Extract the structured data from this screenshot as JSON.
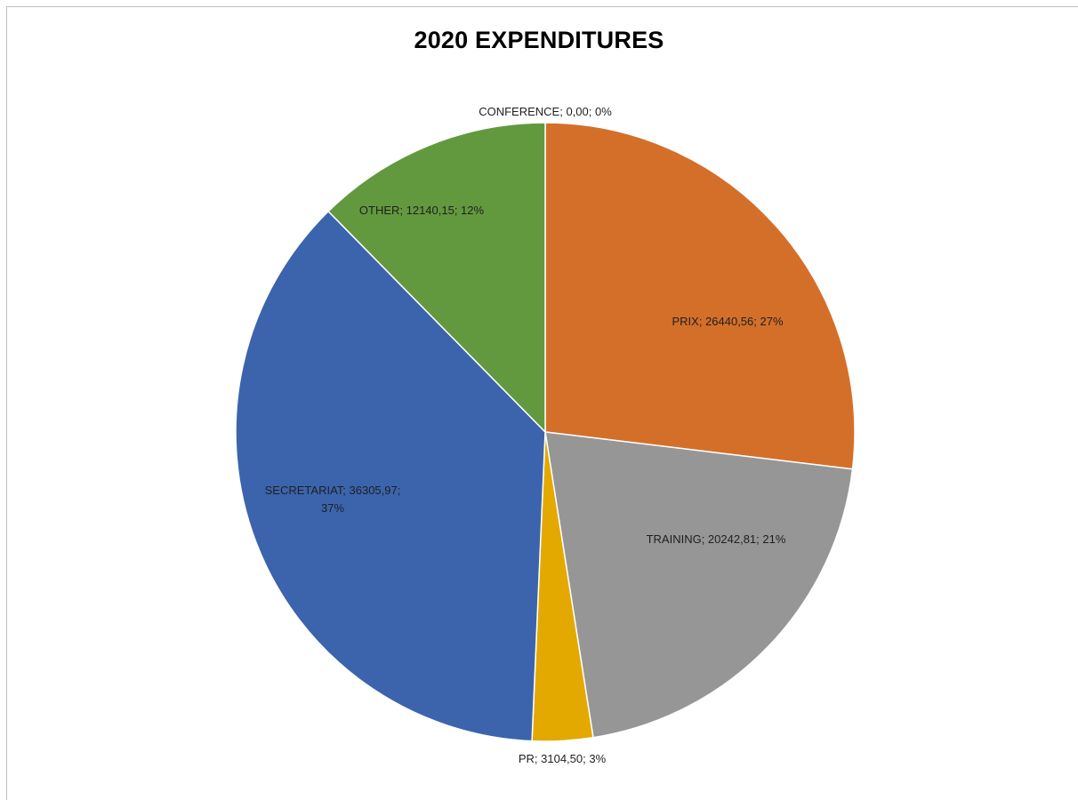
{
  "chart_data": {
    "type": "pie",
    "title": "2020 EXPENDITURES",
    "slices": [
      {
        "category": "CONFERENCE",
        "value": 0.0,
        "value_label": "0,00",
        "percent_label": "0%",
        "color": "#4472C4"
      },
      {
        "category": "PRIX",
        "value": 26440.56,
        "value_label": "26440,56",
        "percent_label": "27%",
        "color": "#D46F2A"
      },
      {
        "category": "TRAINING",
        "value": 20242.81,
        "value_label": "20242,81",
        "percent_label": "21%",
        "color": "#969696"
      },
      {
        "category": "PR",
        "value": 3104.5,
        "value_label": "3104,50",
        "percent_label": "3%",
        "color": "#E3A900"
      },
      {
        "category": "SECRETARIAT",
        "value": 36305.97,
        "value_label": "36305,97",
        "percent_label": "37%",
        "color": "#3B64AD"
      },
      {
        "category": "OTHER",
        "value": 12140.15,
        "value_label": "12140,15",
        "percent_label": "12%",
        "color": "#62993E"
      }
    ],
    "start_angle": "12 o'clock",
    "direction": "clockwise",
    "legend": "none"
  }
}
